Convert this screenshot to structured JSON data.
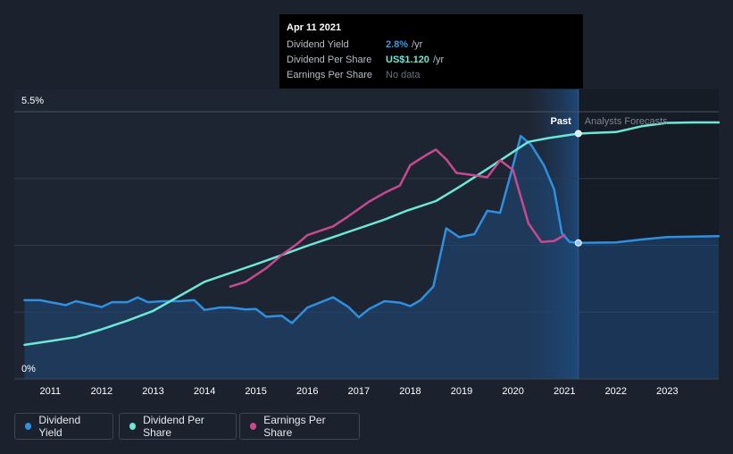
{
  "tooltip": {
    "date": "Apr 11 2021",
    "rows": [
      {
        "name": "Dividend Yield",
        "value": "2.8%",
        "unit": "/yr",
        "color": "#3b9ae1"
      },
      {
        "name": "Dividend Per Share",
        "value": "US$1.120",
        "unit": "/yr",
        "color": "#74e6d3"
      },
      {
        "name": "Earnings Per Share",
        "value": "No data",
        "unit": "",
        "color": "#6b7280"
      }
    ]
  },
  "segments": {
    "past": "Past",
    "forecast": "Analysts Forecasts"
  },
  "legend": [
    {
      "label": "Dividend Yield",
      "color": "#2f8fe0"
    },
    {
      "label": "Dividend Per Share",
      "color": "#6ee7d6"
    },
    {
      "label": "Earnings Per Share",
      "color": "#c8498f"
    }
  ],
  "chart_data": {
    "type": "line",
    "x_range": [
      2010.3,
      2024.0
    ],
    "y_range_pct": [
      0,
      5.5
    ],
    "y_tick_labels": [
      "5.5%",
      "0%"
    ],
    "x_tick_labels": [
      "2011",
      "2012",
      "2013",
      "2014",
      "2015",
      "2016",
      "2017",
      "2018",
      "2019",
      "2020",
      "2021",
      "2022",
      "2023"
    ],
    "past_end": 2021.27,
    "highlight_start": 2020.3,
    "series": [
      {
        "name": "Dividend Yield",
        "unit": "%",
        "color": "#2f8fe0",
        "area": true,
        "points": [
          [
            2010.5,
            1.62
          ],
          [
            2010.8,
            1.62
          ],
          [
            2011.0,
            1.58
          ],
          [
            2011.3,
            1.52
          ],
          [
            2011.5,
            1.6
          ],
          [
            2011.7,
            1.55
          ],
          [
            2012.0,
            1.48
          ],
          [
            2012.2,
            1.58
          ],
          [
            2012.5,
            1.58
          ],
          [
            2012.7,
            1.68
          ],
          [
            2012.9,
            1.58
          ],
          [
            2013.2,
            1.6
          ],
          [
            2013.5,
            1.6
          ],
          [
            2013.8,
            1.62
          ],
          [
            2014.0,
            1.42
          ],
          [
            2014.3,
            1.47
          ],
          [
            2014.5,
            1.47
          ],
          [
            2014.8,
            1.43
          ],
          [
            2015.0,
            1.44
          ],
          [
            2015.2,
            1.28
          ],
          [
            2015.5,
            1.3
          ],
          [
            2015.7,
            1.15
          ],
          [
            2016.0,
            1.47
          ],
          [
            2016.5,
            1.68
          ],
          [
            2016.8,
            1.48
          ],
          [
            2017.0,
            1.27
          ],
          [
            2017.2,
            1.44
          ],
          [
            2017.5,
            1.6
          ],
          [
            2017.8,
            1.57
          ],
          [
            2018.0,
            1.5
          ],
          [
            2018.2,
            1.62
          ],
          [
            2018.45,
            1.9
          ],
          [
            2018.7,
            3.1
          ],
          [
            2018.95,
            2.92
          ],
          [
            2019.25,
            2.98
          ],
          [
            2019.5,
            3.46
          ],
          [
            2019.75,
            3.42
          ],
          [
            2019.95,
            4.2
          ],
          [
            2020.15,
            5.0
          ],
          [
            2020.35,
            4.82
          ],
          [
            2020.6,
            4.4
          ],
          [
            2020.8,
            3.9
          ],
          [
            2020.95,
            3.0
          ],
          [
            2021.1,
            2.82
          ],
          [
            2021.27,
            2.8
          ],
          [
            2022.0,
            2.81
          ],
          [
            2022.5,
            2.87
          ],
          [
            2023.0,
            2.92
          ],
          [
            2024.0,
            2.94
          ]
        ]
      },
      {
        "name": "Dividend Per Share",
        "color": "#6ee7d6",
        "area": false,
        "points": [
          [
            2010.5,
            0.7
          ],
          [
            2011.0,
            0.78
          ],
          [
            2011.5,
            0.86
          ],
          [
            2012.0,
            1.02
          ],
          [
            2012.5,
            1.2
          ],
          [
            2013.0,
            1.4
          ],
          [
            2013.5,
            1.7
          ],
          [
            2014.0,
            2.0
          ],
          [
            2014.5,
            2.18
          ],
          [
            2015.0,
            2.36
          ],
          [
            2015.5,
            2.55
          ],
          [
            2016.0,
            2.74
          ],
          [
            2016.5,
            2.92
          ],
          [
            2017.0,
            3.1
          ],
          [
            2017.5,
            3.28
          ],
          [
            2017.95,
            3.47
          ],
          [
            2018.5,
            3.66
          ],
          [
            2019.0,
            3.98
          ],
          [
            2019.5,
            4.32
          ],
          [
            2020.0,
            4.67
          ],
          [
            2020.3,
            4.88
          ],
          [
            2020.7,
            4.96
          ],
          [
            2021.27,
            5.05
          ],
          [
            2021.5,
            5.06
          ],
          [
            2022.0,
            5.08
          ],
          [
            2022.5,
            5.2
          ],
          [
            2023.0,
            5.27
          ],
          [
            2023.5,
            5.28
          ],
          [
            2024.0,
            5.28
          ]
        ]
      },
      {
        "name": "Earnings Per Share",
        "color": "#c8498f",
        "area": false,
        "points": [
          [
            2014.5,
            1.9
          ],
          [
            2014.8,
            2.0
          ],
          [
            2015.2,
            2.28
          ],
          [
            2015.5,
            2.55
          ],
          [
            2015.8,
            2.78
          ],
          [
            2016.0,
            2.96
          ],
          [
            2016.5,
            3.14
          ],
          [
            2016.8,
            3.35
          ],
          [
            2017.2,
            3.65
          ],
          [
            2017.5,
            3.83
          ],
          [
            2017.8,
            3.98
          ],
          [
            2018.0,
            4.4
          ],
          [
            2018.3,
            4.6
          ],
          [
            2018.5,
            4.72
          ],
          [
            2018.7,
            4.52
          ],
          [
            2018.9,
            4.24
          ],
          [
            2019.2,
            4.2
          ],
          [
            2019.5,
            4.15
          ],
          [
            2019.75,
            4.5
          ],
          [
            2020.0,
            4.3
          ],
          [
            2020.3,
            3.2
          ],
          [
            2020.55,
            2.82
          ],
          [
            2020.8,
            2.84
          ],
          [
            2021.0,
            2.96
          ]
        ]
      }
    ],
    "markers": [
      {
        "series": "Dividend Yield",
        "x": 2021.27,
        "y": 2.8
      },
      {
        "series": "Dividend Per Share",
        "x": 2021.27,
        "y": 5.05
      }
    ]
  }
}
